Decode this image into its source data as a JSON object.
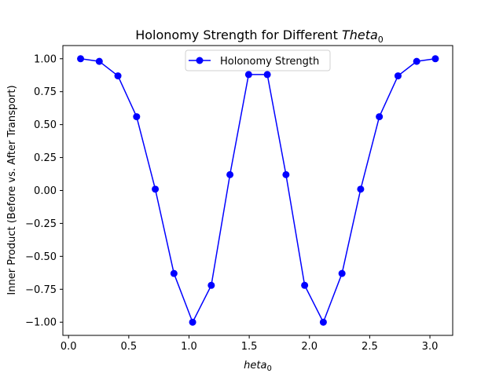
{
  "chart_data": {
    "type": "line",
    "title": "Holonomy Strength for Different ",
    "title_math": "Theta",
    "title_sub": "0",
    "xlabel": "heta",
    "xlabel_sub": "0",
    "ylabel": "Inner Product (Before vs. After Transport)",
    "xlim": [
      -0.047,
      3.189
    ],
    "ylim": [
      -1.1,
      1.1
    ],
    "x_ticks": [
      0.0,
      0.5,
      1.0,
      1.5,
      2.0,
      2.5,
      3.0
    ],
    "x_tick_labels": [
      "0.0",
      "0.5",
      "1.0",
      "1.5",
      "2.0",
      "2.5",
      "3.0"
    ],
    "y_ticks": [
      1.0,
      0.75,
      0.5,
      0.25,
      0.0,
      -0.25,
      -0.5,
      -0.75,
      -1.0
    ],
    "y_tick_labels": [
      "1.00",
      "0.75",
      "0.50",
      "0.25",
      "0.00",
      "−0.25",
      "−0.50",
      "−0.75",
      "−1.00"
    ],
    "grid": false,
    "legend_position": "upper center",
    "series": [
      {
        "name": "Holonomy Strength",
        "color": "#0000ff",
        "marker": "circle",
        "x": [
          0.1,
          0.255,
          0.41,
          0.565,
          0.72,
          0.875,
          1.03,
          1.185,
          1.34,
          1.495,
          1.65,
          1.805,
          1.96,
          2.115,
          2.27,
          2.425,
          2.58,
          2.735,
          2.89,
          3.045
        ],
        "y": [
          1.0,
          0.98,
          0.87,
          0.56,
          0.01,
          -0.63,
          -1.0,
          -0.72,
          0.12,
          0.88,
          0.88,
          0.12,
          -0.72,
          -1.0,
          -0.63,
          0.01,
          0.56,
          0.87,
          0.98,
          1.0
        ]
      }
    ]
  }
}
